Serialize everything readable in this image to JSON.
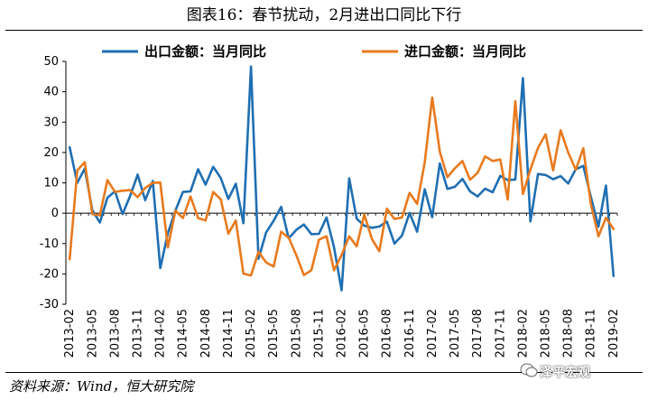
{
  "title": "图表16：春节扰动，2月进出口同比下行",
  "source": "资料来源：Wind，恒大研究院",
  "watermark": "泽平宏观",
  "chart_data": {
    "type": "line",
    "xlabel": "",
    "ylabel": "",
    "ylim": [
      -30,
      50
    ],
    "yticks": [
      -30,
      -20,
      -10,
      0,
      10,
      20,
      30,
      40,
      50
    ],
    "grid": false,
    "legend_placement": "top",
    "x": [
      "2013-02",
      "2013-03",
      "2013-04",
      "2013-05",
      "2013-06",
      "2013-07",
      "2013-08",
      "2013-09",
      "2013-10",
      "2013-11",
      "2013-12",
      "2014-01",
      "2014-02",
      "2014-03",
      "2014-04",
      "2014-05",
      "2014-06",
      "2014-07",
      "2014-08",
      "2014-09",
      "2014-10",
      "2014-11",
      "2014-12",
      "2015-01",
      "2015-02",
      "2015-03",
      "2015-04",
      "2015-05",
      "2015-06",
      "2015-07",
      "2015-08",
      "2015-09",
      "2015-10",
      "2015-11",
      "2015-12",
      "2016-01",
      "2016-02",
      "2016-03",
      "2016-04",
      "2016-05",
      "2016-06",
      "2016-07",
      "2016-08",
      "2016-09",
      "2016-10",
      "2016-11",
      "2016-12",
      "2017-01",
      "2017-02",
      "2017-03",
      "2017-04",
      "2017-05",
      "2017-06",
      "2017-07",
      "2017-08",
      "2017-09",
      "2017-10",
      "2017-11",
      "2017-12",
      "2018-01",
      "2018-02",
      "2018-03",
      "2018-04",
      "2018-05",
      "2018-06",
      "2018-07",
      "2018-08",
      "2018-09",
      "2018-10",
      "2018-11",
      "2018-12",
      "2019-01",
      "2019-02"
    ],
    "xtick_labels": [
      "2013-02",
      "2013-05",
      "2013-08",
      "2013-11",
      "2014-02",
      "2014-05",
      "2014-08",
      "2014-11",
      "2015-02",
      "2015-05",
      "2015-08",
      "2015-11",
      "2016-02",
      "2016-05",
      "2016-08",
      "2016-11",
      "2017-02",
      "2017-05",
      "2017-08",
      "2017-11",
      "2018-02",
      "2018-05",
      "2018-08",
      "2018-11",
      "2019-02"
    ],
    "series": [
      {
        "name": "出口金额：当月同比",
        "color": "#1F6FB2",
        "values": [
          21.7,
          10.0,
          14.7,
          1.0,
          -3.1,
          5.1,
          7.2,
          -0.3,
          5.6,
          12.7,
          4.3,
          10.6,
          -18.1,
          -6.6,
          0.9,
          7.0,
          7.2,
          14.5,
          9.4,
          15.3,
          11.6,
          4.7,
          9.7,
          -3.3,
          48.3,
          -15.0,
          -6.4,
          -2.5,
          2.1,
          -8.3,
          -5.5,
          -3.7,
          -6.9,
          -6.8,
          -1.4,
          -11.2,
          -25.4,
          11.5,
          -1.8,
          -4.1,
          -4.8,
          -4.4,
          -2.8,
          -10.0,
          -7.3,
          0.1,
          -6.1,
          7.9,
          -1.3,
          16.4,
          8.0,
          8.7,
          11.3,
          7.2,
          5.5,
          8.1,
          6.9,
          12.3,
          10.9,
          11.1,
          44.5,
          -2.7,
          12.9,
          12.6,
          11.2,
          12.2,
          9.8,
          14.5,
          15.6,
          5.4,
          -4.4,
          9.1,
          -20.7
        ]
      },
      {
        "name": "进口金额：当月同比",
        "color": "#E87A1E",
        "values": [
          -15.2,
          14.1,
          16.8,
          -0.3,
          -0.7,
          10.9,
          7.0,
          7.4,
          7.6,
          5.3,
          8.3,
          10.0,
          10.1,
          -11.3,
          0.8,
          -1.6,
          5.5,
          -1.6,
          -2.4,
          7.0,
          4.6,
          -6.7,
          -2.4,
          -19.9,
          -20.5,
          -12.7,
          -16.2,
          -17.6,
          -6.1,
          -8.1,
          -13.8,
          -20.4,
          -18.8,
          -8.7,
          -7.6,
          -18.8,
          -13.8,
          -7.6,
          -10.9,
          -0.4,
          -8.4,
          -12.5,
          1.5,
          -1.9,
          -1.4,
          6.7,
          3.1,
          16.7,
          38.1,
          20.3,
          11.9,
          14.8,
          17.2,
          11.0,
          13.3,
          18.7,
          17.2,
          17.7,
          4.5,
          36.9,
          6.3,
          14.4,
          21.5,
          26.0,
          14.1,
          27.3,
          20.0,
          14.3,
          21.4,
          3.0,
          -7.6,
          -1.5,
          -5.2
        ]
      }
    ]
  }
}
